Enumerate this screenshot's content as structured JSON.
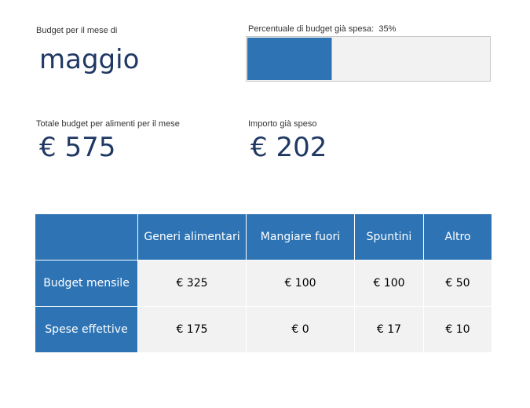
{
  "header": {
    "month_label": "Budget per il mese di",
    "month": "maggio",
    "percent_label": "Percentuale di budget già spesa:",
    "percent_text": "35%",
    "percent_value": 35
  },
  "totals": {
    "budget_label": "Totale budget per alimenti per il mese",
    "budget_value": "€ 575",
    "spent_label": "Importo già speso",
    "spent_value": "€ 202"
  },
  "table": {
    "columns": [
      "",
      "Generi alimentari",
      "Mangiare fuori",
      "Spuntini",
      "Altro"
    ],
    "rows": [
      {
        "label": "Budget mensile",
        "values": [
          "€ 325",
          "€ 100",
          "€ 100",
          "€ 50"
        ]
      },
      {
        "label": "Spese effettive",
        "values": [
          "€ 175",
          "€ 0",
          "€ 17",
          "€ 10"
        ]
      }
    ]
  },
  "colors": {
    "accent": "#2e74b5",
    "text_dark": "#1f3864",
    "cell_bg": "#f2f2f2"
  }
}
